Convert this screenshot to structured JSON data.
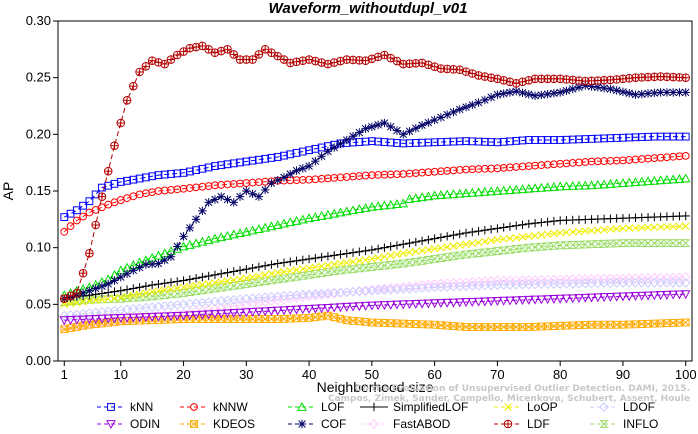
{
  "chart_data": {
    "type": "line",
    "title": "Waveform_withoutdupl_v01",
    "xlabel": "Neighborhood size",
    "ylabel": "AP",
    "xlim": [
      0,
      101
    ],
    "ylim": [
      0,
      0.3
    ],
    "xticks": [
      1,
      10,
      20,
      30,
      40,
      50,
      60,
      70,
      80,
      90,
      100
    ],
    "yticks": [
      "0.00",
      "0.05",
      "0.10",
      "0.15",
      "0.20",
      "0.25",
      "0.30"
    ],
    "grid": false,
    "legend_position": "bottom",
    "watermark": [
      "Campos, Zimek, Sander, Campello, Micenkova, Schubert, Assent, Houle",
      "On the Evaluation of Unsupervised Outlier Detection. DAMI, 2015."
    ],
    "series": [
      {
        "name": "kNN",
        "color": "#0000ff",
        "marker": "square",
        "dash": "5,3",
        "points": [
          [
            1,
            0.127
          ],
          [
            3,
            0.133
          ],
          [
            5,
            0.141
          ],
          [
            7,
            0.153
          ],
          [
            10,
            0.158
          ],
          [
            13,
            0.161
          ],
          [
            16,
            0.164
          ],
          [
            20,
            0.166
          ],
          [
            25,
            0.172
          ],
          [
            30,
            0.176
          ],
          [
            35,
            0.18
          ],
          [
            40,
            0.186
          ],
          [
            45,
            0.192
          ],
          [
            50,
            0.194
          ],
          [
            55,
            0.192
          ],
          [
            60,
            0.193
          ],
          [
            65,
            0.194
          ],
          [
            70,
            0.193
          ],
          [
            75,
            0.195
          ],
          [
            80,
            0.195
          ],
          [
            85,
            0.196
          ],
          [
            90,
            0.197
          ],
          [
            95,
            0.198
          ],
          [
            100,
            0.198
          ]
        ]
      },
      {
        "name": "kNNW",
        "color": "#ff0000",
        "marker": "circle",
        "dash": "5,3",
        "points": [
          [
            1,
            0.114
          ],
          [
            3,
            0.124
          ],
          [
            5,
            0.131
          ],
          [
            8,
            0.138
          ],
          [
            10,
            0.142
          ],
          [
            13,
            0.147
          ],
          [
            16,
            0.15
          ],
          [
            20,
            0.152
          ],
          [
            25,
            0.155
          ],
          [
            30,
            0.157
          ],
          [
            35,
            0.159
          ],
          [
            40,
            0.16
          ],
          [
            45,
            0.162
          ],
          [
            50,
            0.164
          ],
          [
            55,
            0.165
          ],
          [
            60,
            0.167
          ],
          [
            65,
            0.169
          ],
          [
            70,
            0.17
          ],
          [
            75,
            0.172
          ],
          [
            80,
            0.174
          ],
          [
            85,
            0.176
          ],
          [
            90,
            0.177
          ],
          [
            95,
            0.179
          ],
          [
            100,
            0.181
          ]
        ]
      },
      {
        "name": "LOF",
        "color": "#00dd00",
        "marker": "triangle",
        "dash": "5,3",
        "points": [
          [
            1,
            0.058
          ],
          [
            3,
            0.062
          ],
          [
            5,
            0.065
          ],
          [
            8,
            0.072
          ],
          [
            10,
            0.08
          ],
          [
            13,
            0.087
          ],
          [
            16,
            0.093
          ],
          [
            20,
            0.101
          ],
          [
            25,
            0.108
          ],
          [
            30,
            0.114
          ],
          [
            35,
            0.12
          ],
          [
            40,
            0.126
          ],
          [
            45,
            0.131
          ],
          [
            50,
            0.136
          ],
          [
            55,
            0.139
          ],
          [
            56,
            0.143
          ],
          [
            60,
            0.146
          ],
          [
            65,
            0.148
          ],
          [
            70,
            0.15
          ],
          [
            75,
            0.152
          ],
          [
            80,
            0.154
          ],
          [
            85,
            0.155
          ],
          [
            90,
            0.157
          ],
          [
            95,
            0.159
          ],
          [
            100,
            0.161
          ]
        ]
      },
      {
        "name": "COF",
        "color": "#000066",
        "marker": "asterisk",
        "dash": "5,3",
        "points": [
          [
            1,
            0.055
          ],
          [
            3,
            0.058
          ],
          [
            5,
            0.062
          ],
          [
            8,
            0.068
          ],
          [
            10,
            0.074
          ],
          [
            12,
            0.08
          ],
          [
            14,
            0.085
          ],
          [
            16,
            0.086
          ],
          [
            18,
            0.092
          ],
          [
            20,
            0.11
          ],
          [
            22,
            0.125
          ],
          [
            24,
            0.14
          ],
          [
            26,
            0.145
          ],
          [
            28,
            0.14
          ],
          [
            30,
            0.15
          ],
          [
            32,
            0.145
          ],
          [
            34,
            0.157
          ],
          [
            36,
            0.162
          ],
          [
            38,
            0.168
          ],
          [
            40,
            0.172
          ],
          [
            43,
            0.185
          ],
          [
            46,
            0.195
          ],
          [
            49,
            0.205
          ],
          [
            52,
            0.21
          ],
          [
            55,
            0.2
          ],
          [
            58,
            0.208
          ],
          [
            61,
            0.215
          ],
          [
            64,
            0.222
          ],
          [
            67,
            0.228
          ],
          [
            70,
            0.235
          ],
          [
            73,
            0.238
          ],
          [
            76,
            0.234
          ],
          [
            80,
            0.237
          ],
          [
            84,
            0.243
          ],
          [
            88,
            0.24
          ],
          [
            92,
            0.235
          ],
          [
            96,
            0.237
          ],
          [
            100,
            0.237
          ]
        ]
      },
      {
        "name": "SimplifiedLOF",
        "color": "#000000",
        "marker": "plus",
        "dash": "",
        "points": [
          [
            1,
            0.055
          ],
          [
            3,
            0.057
          ],
          [
            5,
            0.058
          ],
          [
            10,
            0.062
          ],
          [
            15,
            0.067
          ],
          [
            20,
            0.071
          ],
          [
            25,
            0.076
          ],
          [
            30,
            0.081
          ],
          [
            35,
            0.086
          ],
          [
            40,
            0.09
          ],
          [
            45,
            0.094
          ],
          [
            50,
            0.098
          ],
          [
            55,
            0.103
          ],
          [
            60,
            0.108
          ],
          [
            65,
            0.113
          ],
          [
            70,
            0.117
          ],
          [
            75,
            0.121
          ],
          [
            80,
            0.124
          ],
          [
            85,
            0.125
          ],
          [
            90,
            0.126
          ],
          [
            95,
            0.127
          ],
          [
            100,
            0.128
          ]
        ]
      },
      {
        "name": "FastABOD",
        "color": "#ffccff",
        "marker": "diamond",
        "dash": "5,3",
        "points": [
          [
            1,
            0.03
          ],
          [
            10,
            0.036
          ],
          [
            20,
            0.042
          ],
          [
            30,
            0.05
          ],
          [
            40,
            0.057
          ],
          [
            50,
            0.063
          ],
          [
            60,
            0.068
          ],
          [
            70,
            0.071
          ],
          [
            80,
            0.072
          ],
          [
            90,
            0.073
          ],
          [
            100,
            0.074
          ]
        ]
      },
      {
        "name": "LoOP",
        "color": "#eeee00",
        "marker": "x",
        "dash": "5,3",
        "points": [
          [
            1,
            0.05
          ],
          [
            5,
            0.053
          ],
          [
            10,
            0.056
          ],
          [
            15,
            0.061
          ],
          [
            20,
            0.065
          ],
          [
            25,
            0.069
          ],
          [
            30,
            0.073
          ],
          [
            35,
            0.078
          ],
          [
            40,
            0.082
          ],
          [
            45,
            0.086
          ],
          [
            50,
            0.09
          ],
          [
            55,
            0.095
          ],
          [
            60,
            0.099
          ],
          [
            65,
            0.103
          ],
          [
            70,
            0.107
          ],
          [
            75,
            0.11
          ],
          [
            80,
            0.113
          ],
          [
            85,
            0.115
          ],
          [
            90,
            0.117
          ],
          [
            95,
            0.118
          ],
          [
            100,
            0.119
          ]
        ]
      },
      {
        "name": "LDF",
        "color": "#b30000",
        "marker": "circleplus",
        "dash": "5,3",
        "points": [
          [
            1,
            0.055
          ],
          [
            3,
            0.06
          ],
          [
            5,
            0.095
          ],
          [
            7,
            0.145
          ],
          [
            9,
            0.19
          ],
          [
            11,
            0.23
          ],
          [
            13,
            0.255
          ],
          [
            15,
            0.265
          ],
          [
            17,
            0.262
          ],
          [
            19,
            0.27
          ],
          [
            21,
            0.276
          ],
          [
            23,
            0.278
          ],
          [
            25,
            0.272
          ],
          [
            27,
            0.275
          ],
          [
            29,
            0.266
          ],
          [
            31,
            0.266
          ],
          [
            33,
            0.275
          ],
          [
            35,
            0.269
          ],
          [
            37,
            0.263
          ],
          [
            40,
            0.266
          ],
          [
            43,
            0.262
          ],
          [
            46,
            0.266
          ],
          [
            49,
            0.265
          ],
          [
            52,
            0.27
          ],
          [
            55,
            0.262
          ],
          [
            58,
            0.263
          ],
          [
            61,
            0.258
          ],
          [
            64,
            0.257
          ],
          [
            67,
            0.252
          ],
          [
            70,
            0.249
          ],
          [
            73,
            0.245
          ],
          [
            76,
            0.249
          ],
          [
            80,
            0.249
          ],
          [
            84,
            0.247
          ],
          [
            88,
            0.248
          ],
          [
            92,
            0.25
          ],
          [
            96,
            0.251
          ],
          [
            100,
            0.25
          ]
        ]
      },
      {
        "name": "INFLO",
        "color": "#99dd66",
        "marker": "hourglass",
        "dash": "5,3",
        "points": [
          [
            1,
            0.052
          ],
          [
            5,
            0.054
          ],
          [
            10,
            0.055
          ],
          [
            15,
            0.057
          ],
          [
            20,
            0.06
          ],
          [
            25,
            0.064
          ],
          [
            30,
            0.068
          ],
          [
            35,
            0.072
          ],
          [
            40,
            0.076
          ],
          [
            45,
            0.08
          ],
          [
            50,
            0.083
          ],
          [
            55,
            0.086
          ],
          [
            60,
            0.09
          ],
          [
            65,
            0.094
          ],
          [
            70,
            0.097
          ],
          [
            75,
            0.1
          ],
          [
            80,
            0.102
          ],
          [
            85,
            0.103
          ],
          [
            90,
            0.104
          ],
          [
            95,
            0.104
          ],
          [
            100,
            0.104
          ]
        ]
      },
      {
        "name": "ODIN",
        "color": "#9900dd",
        "marker": "triangle-down",
        "dash": "5,3",
        "points": [
          [
            1,
            0.036
          ],
          [
            10,
            0.038
          ],
          [
            20,
            0.04
          ],
          [
            30,
            0.043
          ],
          [
            40,
            0.046
          ],
          [
            50,
            0.049
          ],
          [
            60,
            0.051
          ],
          [
            70,
            0.053
          ],
          [
            80,
            0.055
          ],
          [
            90,
            0.057
          ],
          [
            100,
            0.059
          ]
        ]
      },
      {
        "name": "KDEOS",
        "color": "#ffaa00",
        "marker": "squarex",
        "dash": "5,3",
        "points": [
          [
            1,
            0.028
          ],
          [
            3,
            0.03
          ],
          [
            5,
            0.032
          ],
          [
            10,
            0.035
          ],
          [
            15,
            0.036
          ],
          [
            20,
            0.037
          ],
          [
            25,
            0.037
          ],
          [
            30,
            0.037
          ],
          [
            35,
            0.037
          ],
          [
            40,
            0.038
          ],
          [
            43,
            0.04
          ],
          [
            46,
            0.036
          ],
          [
            50,
            0.034
          ],
          [
            55,
            0.033
          ],
          [
            60,
            0.032
          ],
          [
            65,
            0.03
          ],
          [
            70,
            0.03
          ],
          [
            75,
            0.03
          ],
          [
            80,
            0.031
          ],
          [
            85,
            0.032
          ],
          [
            90,
            0.032
          ],
          [
            95,
            0.033
          ],
          [
            100,
            0.034
          ]
        ]
      },
      {
        "name": "LDOF",
        "color": "#ccccff",
        "marker": "diamond",
        "dash": "5,3",
        "points": [
          [
            1,
            0.04
          ],
          [
            10,
            0.045
          ],
          [
            20,
            0.05
          ],
          [
            30,
            0.055
          ],
          [
            40,
            0.059
          ],
          [
            50,
            0.062
          ],
          [
            60,
            0.065
          ],
          [
            70,
            0.067
          ],
          [
            80,
            0.068
          ],
          [
            90,
            0.069
          ],
          [
            100,
            0.069
          ]
        ]
      }
    ],
    "legend_order": [
      "kNN",
      "kNNW",
      "LOF",
      "SimplifiedLOF",
      "LoOP",
      "LDOF",
      "ODIN",
      "KDEOS",
      "COF",
      "FastABOD",
      "LDF",
      "INFLO"
    ]
  }
}
